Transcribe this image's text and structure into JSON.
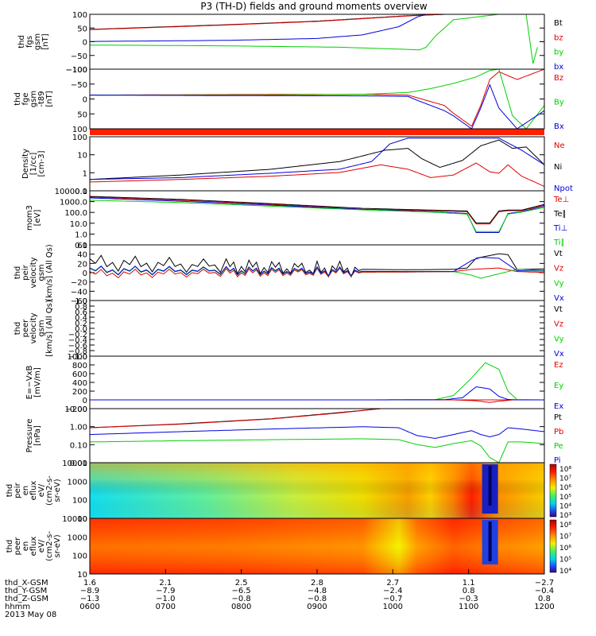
{
  "title": "P3 (TH-D) fields and ground moments overview",
  "colors": {
    "black": "#000000",
    "red": "#e00000",
    "green": "#00d000",
    "blue": "#0000e0"
  },
  "chart_data": [
    {
      "type": "line",
      "id": "fgs",
      "ylabel": [
        "thd",
        "fgs",
        "gsm",
        "[nT]"
      ],
      "yticks": [
        "100",
        "50",
        "0",
        "−50",
        "−100"
      ],
      "ylim": [
        -100,
        100
      ],
      "scale": "linear",
      "legend": [
        {
          "text": "Bt",
          "color": "black"
        },
        {
          "text": "bz",
          "color": "red"
        },
        {
          "text": "by",
          "color": "green"
        },
        {
          "text": "bx",
          "color": "blue"
        }
      ],
      "series": [
        {
          "name": "Bt",
          "color": "black",
          "x": [
            0,
            0.3,
            0.5,
            0.6,
            0.7,
            0.78
          ],
          "y": [
            45,
            62,
            75,
            85,
            95,
            100
          ]
        },
        {
          "name": "bz",
          "color": "red",
          "x": [
            0,
            0.3,
            0.5,
            0.6,
            0.7,
            0.78
          ],
          "y": [
            44,
            61,
            74,
            84,
            94,
            100
          ]
        },
        {
          "name": "by",
          "color": "green",
          "x": [
            0,
            0.3,
            0.55,
            0.7,
            0.725,
            0.74,
            0.76,
            0.8,
            0.9,
            0.96,
            0.975,
            0.985
          ],
          "y": [
            -12,
            -15,
            -20,
            -28,
            -30,
            -20,
            20,
            80,
            100,
            100,
            -80,
            -20
          ]
        },
        {
          "name": "bx",
          "color": "blue",
          "x": [
            0,
            0.3,
            0.5,
            0.6,
            0.68,
            0.72,
            0.74
          ],
          "y": [
            1,
            5,
            12,
            25,
            55,
            90,
            100
          ]
        }
      ]
    },
    {
      "type": "line",
      "id": "fge",
      "ylabel": [
        "thd",
        "fge",
        "gsm",
        "-t89",
        "[nT]"
      ],
      "yticks": [
        "−100",
        "−50",
        "0",
        "50",
        "100"
      ],
      "ylim": [
        -130,
        100
      ],
      "scale": "linear",
      "legend": [
        {
          "text": "Bz",
          "color": "red"
        },
        {
          "text": "By",
          "color": "green"
        },
        {
          "text": "Bx",
          "color": "blue"
        }
      ],
      "series": [
        {
          "name": "Bz",
          "color": "red",
          "x": [
            0,
            0.3,
            0.6,
            0.7,
            0.72,
            0.74,
            0.78,
            0.8,
            0.84,
            0.86,
            0.88,
            0.9,
            0.94,
            1
          ],
          "y": [
            0,
            2,
            3,
            0,
            -10,
            -20,
            -40,
            -70,
            -120,
            -40,
            60,
            90,
            60,
            100
          ]
        },
        {
          "name": "By",
          "color": "green",
          "x": [
            0,
            0.4,
            0.6,
            0.7,
            0.75,
            0.8,
            0.85,
            0.88,
            0.9,
            0.93,
            0.96,
            1
          ],
          "y": [
            0,
            0,
            3,
            10,
            25,
            45,
            70,
            95,
            100,
            -80,
            -130,
            -40
          ]
        },
        {
          "name": "Bx",
          "color": "blue",
          "x": [
            0,
            0.3,
            0.6,
            0.7,
            0.72,
            0.75,
            0.78,
            0.8,
            0.84,
            0.86,
            0.88,
            0.9,
            0.94,
            1
          ],
          "y": [
            0,
            -2,
            -3,
            -5,
            -20,
            -40,
            -60,
            -80,
            -130,
            -50,
            40,
            -50,
            -130,
            -60
          ]
        }
      ]
    },
    {
      "type": "line",
      "id": "density",
      "ylabel": [
        "Density",
        "[1/cc]",
        "[cm-3]"
      ],
      "yticks": [
        "100",
        "10",
        "1",
        "0.1"
      ],
      "ylim": [
        0.05,
        250
      ],
      "scale": "log",
      "legend": [
        {
          "text": "Ne",
          "color": "red"
        },
        {
          "text": "Ni",
          "color": "black"
        },
        {
          "text": "Npot",
          "color": "blue"
        }
      ],
      "series": [
        {
          "name": "Ni",
          "color": "black",
          "x": [
            0,
            0.2,
            0.4,
            0.55,
            0.65,
            0.7,
            0.73,
            0.77,
            0.82,
            0.86,
            0.9,
            0.93,
            0.96,
            1
          ],
          "y": [
            0.3,
            0.6,
            1.5,
            5,
            30,
            40,
            8,
            2,
            6,
            60,
            150,
            40,
            50,
            3
          ]
        },
        {
          "name": "Ne",
          "color": "red",
          "x": [
            0,
            0.2,
            0.4,
            0.55,
            0.64,
            0.7,
            0.75,
            0.8,
            0.85,
            0.88,
            0.9,
            0.92,
            0.95,
            1
          ],
          "y": [
            0.2,
            0.3,
            0.5,
            0.9,
            3,
            1.5,
            0.4,
            0.6,
            4,
            1,
            0.8,
            3,
            0.5,
            0.1
          ]
        },
        {
          "name": "Npot",
          "color": "blue",
          "x": [
            0,
            0.2,
            0.4,
            0.55,
            0.62,
            0.66,
            0.7,
            0.9,
            0.95,
            1
          ],
          "y": [
            0.3,
            0.4,
            0.8,
            1.5,
            5,
            80,
            200,
            200,
            30,
            3
          ]
        }
      ]
    },
    {
      "type": "line",
      "id": "temp",
      "ylabel": [
        "mom3",
        "[eV]"
      ],
      "yticks": [
        "10000.0",
        "1000.0",
        "100.0",
        "10.0",
        "1.0",
        "0.1"
      ],
      "ylim": [
        0.08,
        12000
      ],
      "scale": "log",
      "legend": [
        {
          "text": "Te⊥",
          "color": "red"
        },
        {
          "text": "Te∥",
          "color": "black"
        },
        {
          "text": "Ti⊥",
          "color": "blue"
        },
        {
          "text": "Ti∥",
          "color": "green"
        }
      ],
      "series": [
        {
          "name": "Te⊥",
          "color": "red",
          "x": [
            0,
            0.2,
            0.4,
            0.6,
            0.75,
            0.83,
            0.85,
            0.88,
            0.9,
            0.92,
            0.95,
            1
          ],
          "y": [
            3000,
            1500,
            600,
            200,
            150,
            120,
            8,
            8,
            120,
            150,
            150,
            500
          ]
        },
        {
          "name": "Te∥",
          "color": "black",
          "x": [
            0,
            0.2,
            0.4,
            0.6,
            0.75,
            0.83,
            0.85,
            0.88,
            0.9,
            0.92,
            0.95,
            1
          ],
          "y": [
            3500,
            1800,
            700,
            250,
            170,
            140,
            10,
            10,
            140,
            170,
            170,
            600
          ]
        },
        {
          "name": "Ti⊥",
          "color": "blue",
          "x": [
            0,
            0.2,
            0.4,
            0.6,
            0.75,
            0.83,
            0.85,
            0.9,
            0.92,
            0.95,
            1
          ],
          "y": [
            2500,
            1200,
            500,
            200,
            120,
            80,
            1.2,
            1.2,
            80,
            120,
            400
          ]
        },
        {
          "name": "Ti∥",
          "color": "green",
          "x": [
            0,
            0.2,
            0.4,
            0.6,
            0.75,
            0.83,
            0.85,
            0.9,
            0.92,
            0.95,
            1
          ],
          "y": [
            1500,
            900,
            400,
            180,
            110,
            70,
            1.5,
            1.5,
            70,
            110,
            300
          ]
        }
      ]
    },
    {
      "type": "line",
      "id": "veli",
      "ylabel": [
        "thd",
        "peir",
        "velocity",
        "gsm",
        "[km/s] (All Qs)"
      ],
      "yticks": [
        "60",
        "40",
        "20",
        "0",
        "−20",
        "−40",
        "−60"
      ],
      "ylim": [
        -65,
        60
      ],
      "scale": "linear",
      "legend": [
        {
          "text": "Vt",
          "color": "black"
        },
        {
          "text": "Vz",
          "color": "red"
        },
        {
          "text": "Vy",
          "color": "green"
        },
        {
          "text": "Vx",
          "color": "blue"
        }
      ],
      "series": [
        {
          "name": "Vt",
          "color": "black",
          "x": [
            0,
            0.3,
            0.5,
            0.7,
            0.8,
            0.83,
            0.85,
            0.9,
            0.92,
            0.94,
            1
          ],
          "y": [
            20,
            12,
            6,
            4,
            5,
            8,
            30,
            40,
            38,
            5,
            6
          ]
        },
        {
          "name": "Vz",
          "color": "red",
          "x": [
            0,
            0.3,
            0.5,
            0.7,
            0.8,
            0.84,
            0.9,
            0.94,
            1
          ],
          "y": [
            -5,
            -3,
            -2,
            -1,
            0,
            5,
            8,
            0,
            -2
          ]
        },
        {
          "name": "Vy",
          "color": "green",
          "x": [
            0,
            0.3,
            0.5,
            0.7,
            0.8,
            0.84,
            0.86,
            0.9,
            0.94,
            1
          ],
          "y": [
            2,
            1,
            0,
            0,
            0,
            -8,
            -15,
            -5,
            5,
            3
          ]
        },
        {
          "name": "Vx",
          "color": "blue",
          "x": [
            0,
            0.3,
            0.5,
            0.7,
            0.8,
            0.84,
            0.86,
            0.9,
            0.94,
            1
          ],
          "y": [
            3,
            2,
            1,
            0,
            0,
            25,
            32,
            30,
            2,
            1
          ]
        }
      ]
    },
    {
      "type": "line",
      "id": "vele",
      "ylabel": [
        "thd",
        "peer",
        "velocity",
        "gsm",
        "[km/s] (All Qs)"
      ],
      "yticks": [
        "1.0",
        "0.8",
        "0.6",
        "0.4",
        "0.2",
        "0.0",
        "−0.2",
        "−0.4",
        "−0.6",
        "−0.8",
        "−1.0"
      ],
      "ylim": [
        -1,
        1
      ],
      "scale": "linear",
      "legend": [
        {
          "text": "Vt",
          "color": "black"
        },
        {
          "text": "Vz",
          "color": "red"
        },
        {
          "text": "Vy",
          "color": "green"
        },
        {
          "text": "Vx",
          "color": "blue"
        }
      ],
      "series": []
    },
    {
      "type": "line",
      "id": "efield",
      "ylabel": [
        "E=−VxB",
        "[mV/m]"
      ],
      "yticks": [
        "1000",
        "800",
        "600",
        "400",
        "200",
        "0",
        "−200"
      ],
      "ylim": [
        -200,
        1000
      ],
      "scale": "linear",
      "legend": [
        {
          "text": "Ez",
          "color": "red"
        },
        {
          "text": "Ey",
          "color": "green"
        },
        {
          "text": "Ex",
          "color": "blue"
        }
      ],
      "series": [
        {
          "name": "Ez",
          "color": "red",
          "x": [
            0,
            0.6,
            0.8,
            0.85,
            0.88,
            0.9,
            0.93,
            1
          ],
          "y": [
            0,
            0,
            0,
            -20,
            -60,
            -30,
            0,
            0
          ]
        },
        {
          "name": "Ey",
          "color": "green",
          "x": [
            0,
            0.6,
            0.76,
            0.8,
            0.84,
            0.87,
            0.9,
            0.92,
            0.94,
            1
          ],
          "y": [
            0,
            0,
            5,
            100,
            500,
            850,
            700,
            200,
            5,
            0
          ]
        },
        {
          "name": "Ex",
          "color": "blue",
          "x": [
            0,
            0.6,
            0.78,
            0.82,
            0.85,
            0.88,
            0.9,
            0.92,
            0.94,
            1
          ],
          "y": [
            0,
            0,
            3,
            50,
            300,
            250,
            80,
            10,
            0,
            0
          ]
        }
      ]
    },
    {
      "type": "line",
      "id": "pressure",
      "ylabel": [
        "Pressure",
        "[nPa]"
      ],
      "yticks": [
        "10.00",
        "1.00",
        "0.10",
        "0.01"
      ],
      "ylim": [
        0.002,
        30
      ],
      "scale": "log",
      "legend": [
        {
          "text": "Pt",
          "color": "black"
        },
        {
          "text": "Pb",
          "color": "red"
        },
        {
          "text": "Pe",
          "color": "green"
        },
        {
          "text": "Pi",
          "color": "blue"
        }
      ],
      "series": [
        {
          "name": "Pt",
          "color": "black",
          "x": [
            0,
            0.2,
            0.4,
            0.55,
            0.64
          ],
          "y": [
            1,
            2,
            5,
            15,
            30
          ]
        },
        {
          "name": "Pb",
          "color": "red",
          "x": [
            0,
            0.2,
            0.4,
            0.55,
            0.64
          ],
          "y": [
            1,
            1.9,
            4.8,
            14,
            30
          ]
        },
        {
          "name": "Pe",
          "color": "green",
          "x": [
            0,
            0.2,
            0.4,
            0.6,
            0.68,
            0.72,
            0.76,
            0.8,
            0.84,
            0.86,
            0.88,
            0.9,
            0.92,
            0.95,
            1
          ],
          "y": [
            0.08,
            0.1,
            0.12,
            0.14,
            0.12,
            0.05,
            0.03,
            0.06,
            0.1,
            0.04,
            0.005,
            0.002,
            0.08,
            0.08,
            0.06
          ]
        },
        {
          "name": "Pi",
          "color": "blue",
          "x": [
            0,
            0.2,
            0.4,
            0.6,
            0.68,
            0.72,
            0.76,
            0.8,
            0.84,
            0.86,
            0.88,
            0.9,
            0.92,
            0.95,
            1
          ],
          "y": [
            0.3,
            0.5,
            0.8,
            1.2,
            1,
            0.25,
            0.15,
            0.3,
            0.6,
            0.3,
            0.2,
            0.3,
            1,
            0.8,
            0.5
          ]
        }
      ]
    },
    {
      "type": "heatmap",
      "id": "ionspec",
      "ylabel": [
        "thd",
        "peir",
        "en",
        "eflux",
        "eV/",
        "(cm2-s-",
        "sr-eV)"
      ],
      "yticks": [
        "10000",
        "1000",
        "100",
        "10"
      ],
      "colorbar_labels": [
        "10⁸",
        "10⁷",
        "10⁶",
        "10⁵",
        "10⁴",
        "10³"
      ]
    },
    {
      "type": "heatmap",
      "id": "elecspec",
      "ylabel": [
        "thd",
        "peer",
        "en",
        "eflux",
        "eV/",
        "(cm2-s-",
        "sr-eV)"
      ],
      "yticks": [
        "10000",
        "1000",
        "100",
        "10"
      ],
      "colorbar_labels": [
        "10⁸",
        "10⁷",
        "10⁶",
        "10⁵",
        "10⁴"
      ]
    }
  ],
  "xaxis": {
    "rows": [
      {
        "label": "thd_X-GSM",
        "values": [
          "1.6",
          "2.1",
          "2.5",
          "2.8",
          "2.7",
          "1.1",
          "−2.7"
        ]
      },
      {
        "label": "thd_Y-GSM",
        "values": [
          "−8.9",
          "−7.9",
          "−6.5",
          "−4.8",
          "−2.4",
          "0.8",
          "−0.4"
        ]
      },
      {
        "label": "thd_Z-GSM",
        "values": [
          "−1.3",
          "−1.0",
          "−0.8",
          "−0.8",
          "−0.7",
          "−0.3",
          "0.8"
        ]
      },
      {
        "label": "hhmm",
        "values": [
          "0600",
          "0700",
          "0800",
          "0900",
          "1000",
          "1100",
          "1200"
        ]
      }
    ],
    "date": "2013 May 08"
  }
}
